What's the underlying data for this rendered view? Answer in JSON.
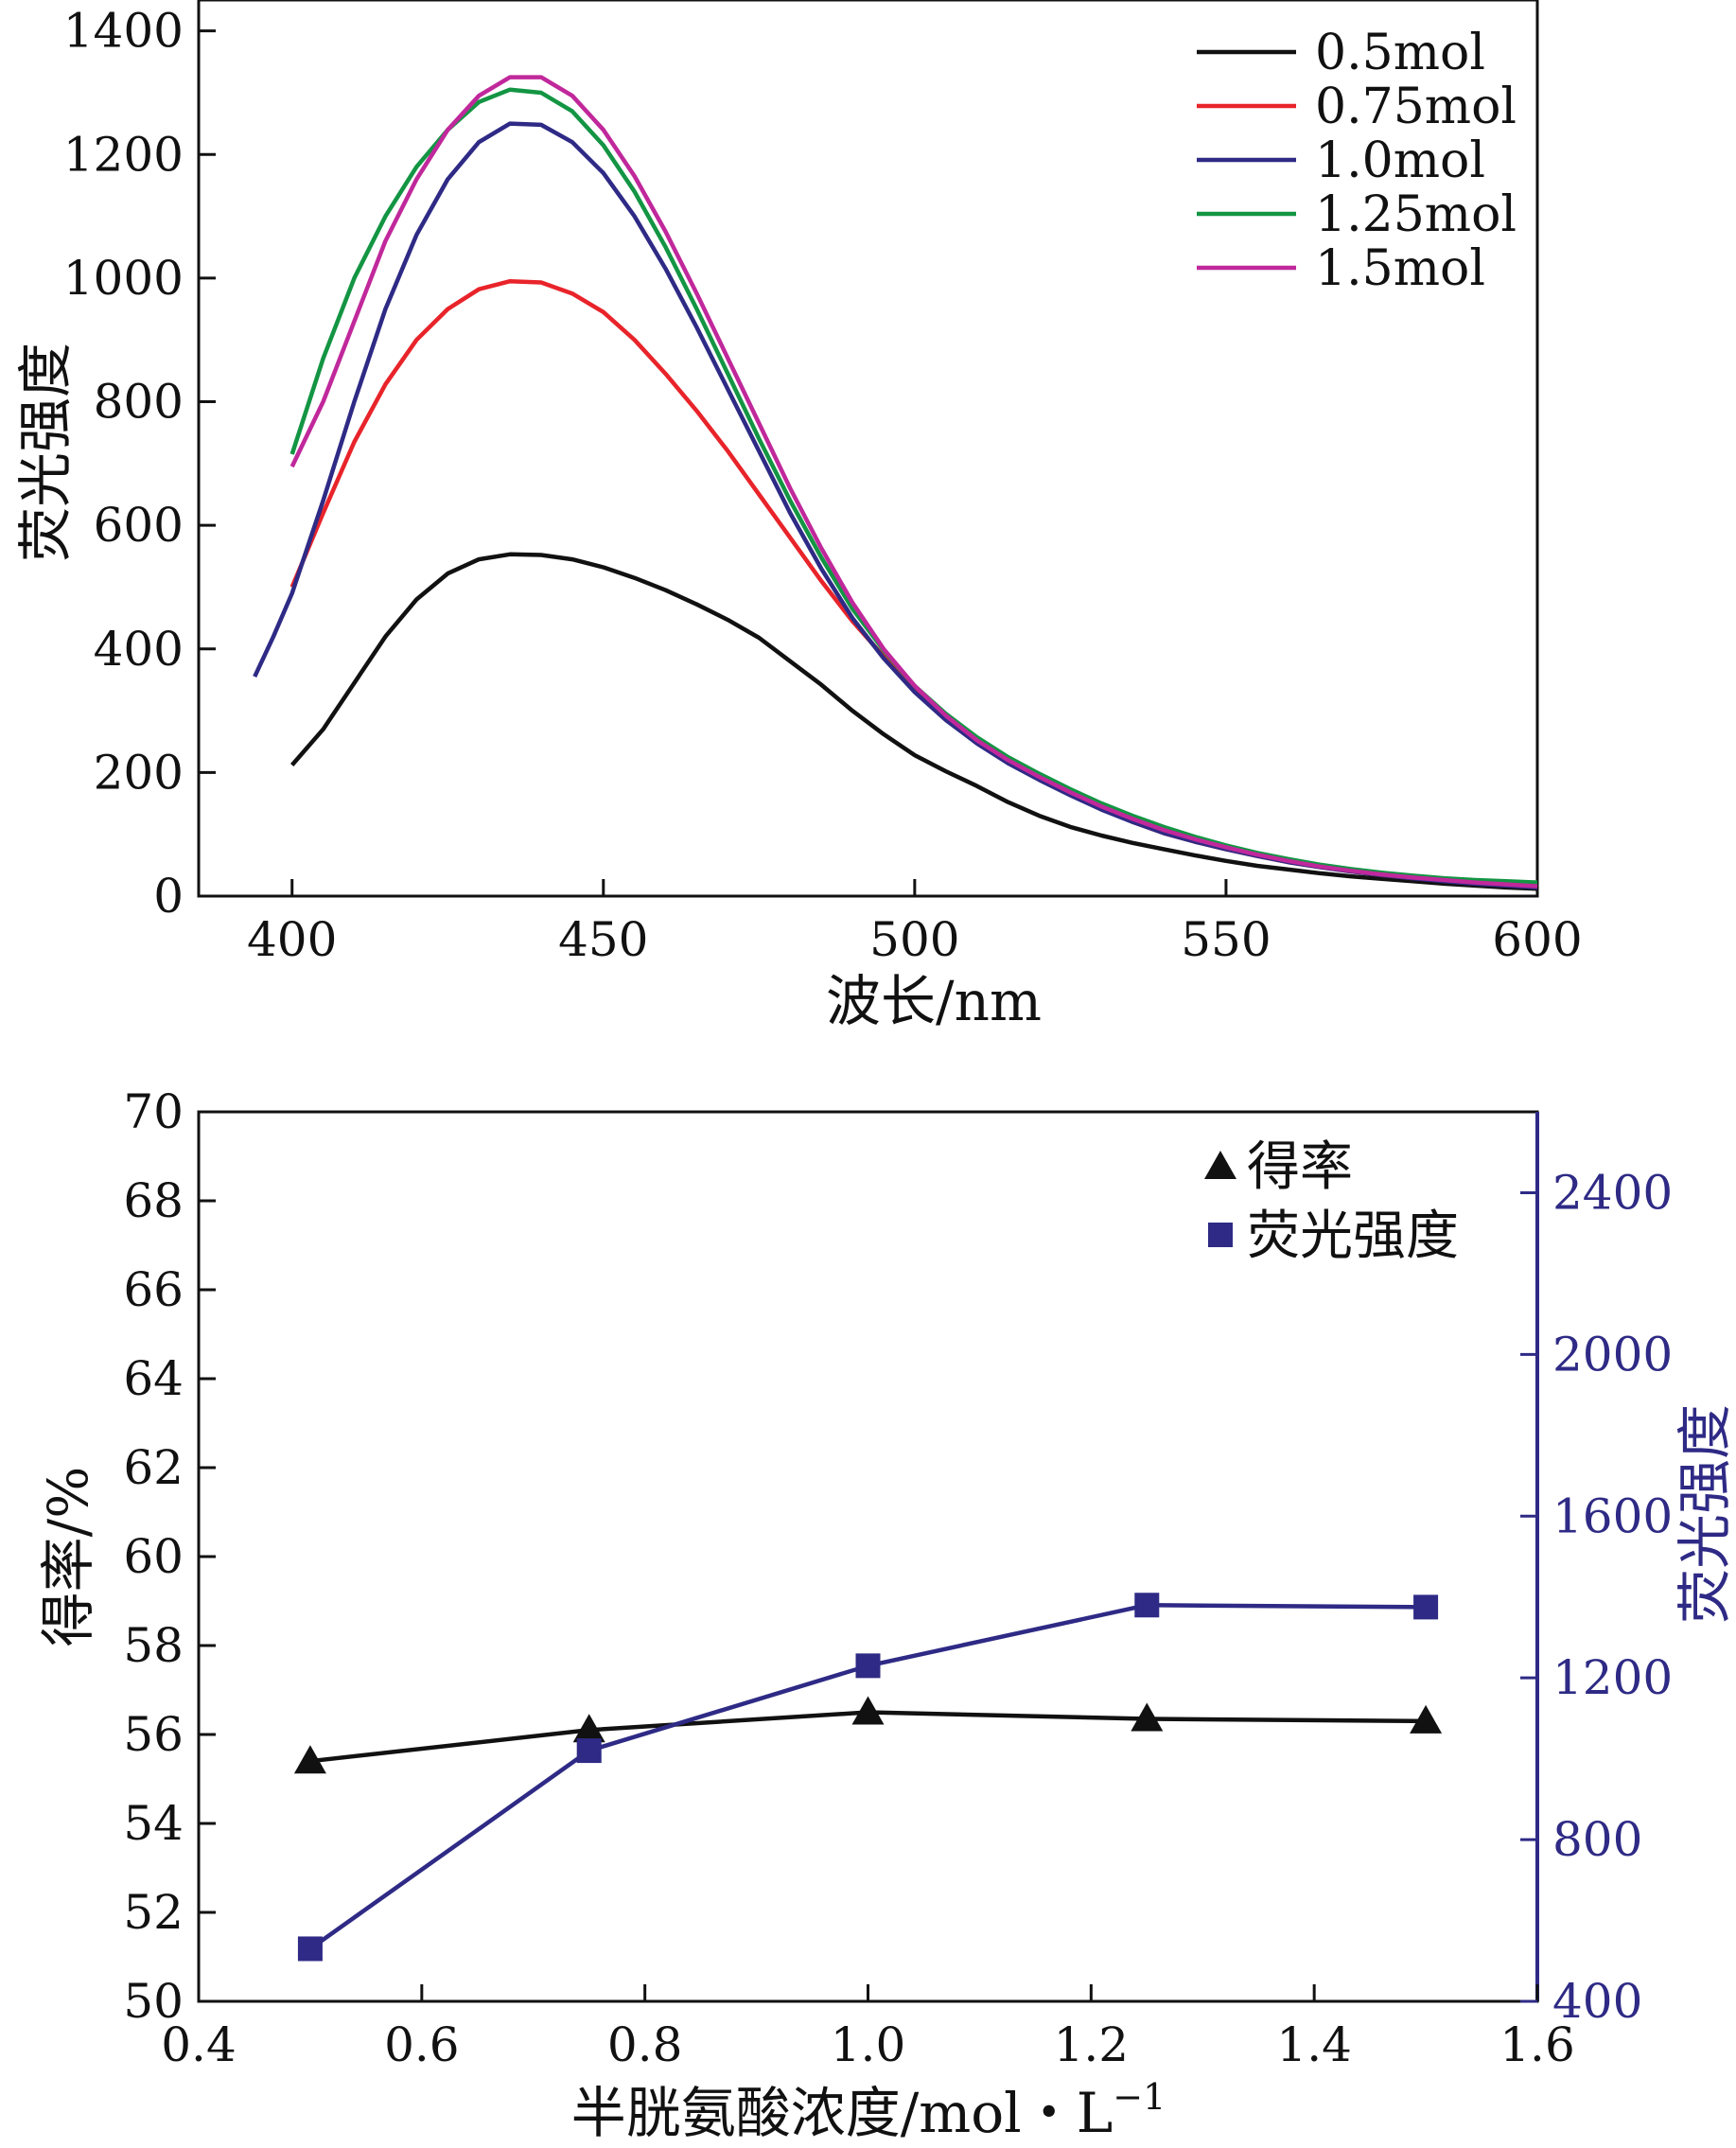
{
  "chart_data": [
    {
      "type": "line",
      "xlabel": "波长/nm",
      "ylabel": "荧光强度",
      "xlim": [
        385,
        600
      ],
      "ylim": [
        0,
        1450
      ],
      "xticks": [
        400,
        450,
        500,
        550,
        600
      ],
      "yticks": [
        0,
        200,
        400,
        600,
        800,
        1000,
        1200,
        1400
      ],
      "legend_position": "top-right",
      "series": [
        {
          "name": "0.5mol",
          "color": "#111111",
          "points": [
            [
              400,
              212
            ],
            [
              405,
              270
            ],
            [
              410,
              345
            ],
            [
              415,
              420
            ],
            [
              420,
              480
            ],
            [
              425,
              522
            ],
            [
              430,
              545
            ],
            [
              435,
              553
            ],
            [
              440,
              552
            ],
            [
              445,
              545
            ],
            [
              450,
              532
            ],
            [
              455,
              515
            ],
            [
              460,
              495
            ],
            [
              465,
              472
            ],
            [
              470,
              447
            ],
            [
              475,
              418
            ],
            [
              480,
              380
            ],
            [
              485,
              342
            ],
            [
              490,
              300
            ],
            [
              495,
              262
            ],
            [
              500,
              228
            ],
            [
              505,
              202
            ],
            [
              510,
              178
            ],
            [
              515,
              152
            ],
            [
              520,
              130
            ],
            [
              525,
              112
            ],
            [
              530,
              98
            ],
            [
              535,
              86
            ],
            [
              540,
              76
            ],
            [
              545,
              66
            ],
            [
              550,
              57
            ],
            [
              555,
              49
            ],
            [
              560,
              43
            ],
            [
              565,
              37
            ],
            [
              570,
              32
            ],
            [
              575,
              28
            ],
            [
              580,
              24
            ],
            [
              585,
              20
            ],
            [
              590,
              17
            ],
            [
              595,
              14
            ],
            [
              600,
              12
            ]
          ]
        },
        {
          "name": "0.75mol",
          "color": "#e8242a",
          "points": [
            [
              400,
              500
            ],
            [
              405,
              620
            ],
            [
              410,
              735
            ],
            [
              415,
              828
            ],
            [
              420,
              900
            ],
            [
              425,
              950
            ],
            [
              430,
              982
            ],
            [
              435,
              995
            ],
            [
              440,
              993
            ],
            [
              445,
              975
            ],
            [
              450,
              945
            ],
            [
              455,
              900
            ],
            [
              460,
              845
            ],
            [
              465,
              785
            ],
            [
              470,
              720
            ],
            [
              475,
              650
            ],
            [
              480,
              580
            ],
            [
              485,
              510
            ],
            [
              490,
              445
            ],
            [
              495,
              388
            ],
            [
              500,
              335
            ],
            [
              505,
              292
            ],
            [
              510,
              255
            ],
            [
              515,
              220
            ],
            [
              520,
              192
            ],
            [
              525,
              165
            ],
            [
              530,
              142
            ],
            [
              535,
              120
            ],
            [
              540,
              102
            ],
            [
              545,
              88
            ],
            [
              550,
              76
            ],
            [
              555,
              65
            ],
            [
              560,
              55
            ],
            [
              565,
              47
            ],
            [
              570,
              40
            ],
            [
              575,
              34
            ],
            [
              580,
              29
            ],
            [
              585,
              25
            ],
            [
              590,
              21
            ],
            [
              595,
              18
            ],
            [
              600,
              15
            ]
          ]
        },
        {
          "name": "1.0mol",
          "color": "#2e2a85",
          "points": [
            [
              394,
              355
            ],
            [
              397,
              420
            ],
            [
              400,
              490
            ],
            [
              405,
              640
            ],
            [
              410,
              800
            ],
            [
              415,
              950
            ],
            [
              420,
              1070
            ],
            [
              425,
              1160
            ],
            [
              430,
              1220
            ],
            [
              435,
              1250
            ],
            [
              440,
              1248
            ],
            [
              445,
              1220
            ],
            [
              450,
              1170
            ],
            [
              455,
              1100
            ],
            [
              460,
              1015
            ],
            [
              465,
              920
            ],
            [
              470,
              820
            ],
            [
              475,
              720
            ],
            [
              480,
              620
            ],
            [
              485,
              530
            ],
            [
              490,
              450
            ],
            [
              495,
              385
            ],
            [
              500,
              330
            ],
            [
              505,
              285
            ],
            [
              510,
              247
            ],
            [
              515,
              215
            ],
            [
              520,
              188
            ],
            [
              525,
              163
            ],
            [
              530,
              140
            ],
            [
              535,
              120
            ],
            [
              540,
              102
            ],
            [
              545,
              88
            ],
            [
              550,
              76
            ],
            [
              555,
              65
            ],
            [
              560,
              55
            ],
            [
              565,
              47
            ],
            [
              570,
              40
            ],
            [
              575,
              34
            ],
            [
              580,
              29
            ],
            [
              585,
              24
            ],
            [
              590,
              20
            ],
            [
              595,
              17
            ],
            [
              600,
              14
            ]
          ]
        },
        {
          "name": "1.25mol",
          "color": "#139543",
          "points": [
            [
              400,
              715
            ],
            [
              405,
              870
            ],
            [
              410,
              1000
            ],
            [
              415,
              1100
            ],
            [
              420,
              1180
            ],
            [
              425,
              1240
            ],
            [
              430,
              1285
            ],
            [
              435,
              1305
            ],
            [
              440,
              1300
            ],
            [
              445,
              1270
            ],
            [
              450,
              1215
            ],
            [
              455,
              1140
            ],
            [
              460,
              1050
            ],
            [
              465,
              950
            ],
            [
              470,
              845
            ],
            [
              475,
              740
            ],
            [
              480,
              640
            ],
            [
              485,
              548
            ],
            [
              490,
              465
            ],
            [
              495,
              398
            ],
            [
              500,
              340
            ],
            [
              505,
              295
            ],
            [
              510,
              257
            ],
            [
              515,
              225
            ],
            [
              520,
              198
            ],
            [
              525,
              173
            ],
            [
              530,
              150
            ],
            [
              535,
              130
            ],
            [
              540,
              112
            ],
            [
              545,
              96
            ],
            [
              550,
              82
            ],
            [
              555,
              70
            ],
            [
              560,
              60
            ],
            [
              565,
              51
            ],
            [
              570,
              44
            ],
            [
              575,
              38
            ],
            [
              580,
              33
            ],
            [
              585,
              29
            ],
            [
              590,
              26
            ],
            [
              595,
              24
            ],
            [
              600,
              22
            ]
          ]
        },
        {
          "name": "1.5mol",
          "color": "#c0289b",
          "points": [
            [
              400,
              695
            ],
            [
              405,
              800
            ],
            [
              410,
              930
            ],
            [
              415,
              1060
            ],
            [
              420,
              1160
            ],
            [
              425,
              1240
            ],
            [
              430,
              1295
            ],
            [
              435,
              1325
            ],
            [
              440,
              1325
            ],
            [
              445,
              1295
            ],
            [
              450,
              1240
            ],
            [
              455,
              1165
            ],
            [
              460,
              1075
            ],
            [
              465,
              975
            ],
            [
              470,
              870
            ],
            [
              475,
              765
            ],
            [
              480,
              660
            ],
            [
              485,
              563
            ],
            [
              490,
              475
            ],
            [
              495,
              400
            ],
            [
              500,
              340
            ],
            [
              505,
              292
            ],
            [
              510,
              252
            ],
            [
              515,
              220
            ],
            [
              520,
              193
            ],
            [
              525,
              168
            ],
            [
              530,
              145
            ],
            [
              535,
              125
            ],
            [
              540,
              107
            ],
            [
              545,
              92
            ],
            [
              550,
              79
            ],
            [
              555,
              67
            ],
            [
              560,
              57
            ],
            [
              565,
              48
            ],
            [
              570,
              41
            ],
            [
              575,
              35
            ],
            [
              580,
              30
            ],
            [
              585,
              26
            ],
            [
              590,
              22
            ],
            [
              595,
              19
            ],
            [
              600,
              16
            ]
          ]
        }
      ]
    },
    {
      "type": "line",
      "xlabel_main": "半胱氨酸浓度/mol・L",
      "xlabel_sup": "−1",
      "ylabel_left": "得率/%",
      "ylabel_right": "荧光强度",
      "xlim": [
        0.4,
        1.6
      ],
      "ylim_left": [
        50,
        70
      ],
      "ylim_right": [
        400,
        2600
      ],
      "xticks": [
        0.4,
        0.6,
        0.8,
        1.0,
        1.2,
        1.4,
        1.6
      ],
      "yticks_left": [
        50,
        52,
        54,
        56,
        58,
        60,
        62,
        64,
        66,
        68,
        70
      ],
      "yticks_right": [
        400,
        800,
        1200,
        1600,
        2000,
        2400
      ],
      "right_axis_color": "#2e2a85",
      "legend_position": "top-right",
      "series": [
        {
          "name": "得率",
          "axis": "left",
          "marker": "triangle",
          "color": "#111111",
          "x": [
            0.5,
            0.75,
            1.0,
            1.25,
            1.5
          ],
          "y": [
            55.4,
            56.1,
            56.5,
            56.35,
            56.3
          ]
        },
        {
          "name": "荧光强度",
          "axis": "right",
          "marker": "square",
          "color": "#2e2a85",
          "x": [
            0.5,
            0.75,
            1.0,
            1.25,
            1.5
          ],
          "y": [
            530,
            1020,
            1230,
            1380,
            1375
          ]
        }
      ]
    }
  ]
}
